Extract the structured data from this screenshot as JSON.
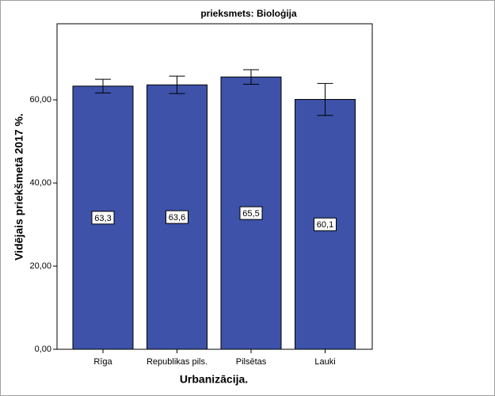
{
  "chart_data": {
    "type": "bar",
    "title": "prieksmets: Bioloģija",
    "x_label": "Urbanizācija.",
    "y_label": "Vidējais priekšmetā 2017 %.",
    "categories": [
      "Rīga",
      "Republikas pils.",
      "Pilsētas",
      "Lauki"
    ],
    "values": [
      63.3,
      63.6,
      65.5,
      60.1
    ],
    "value_labels": [
      "63,3",
      "63,6",
      "65,5",
      "60,1"
    ],
    "errors": [
      1.65,
      2.1,
      1.75,
      3.85
    ],
    "color": "#3d52a8",
    "ylim": [
      0,
      78.3
    ],
    "yticks": [
      {
        "value": 0,
        "label": "0,00"
      },
      {
        "value": 20,
        "label": "20,00"
      },
      {
        "value": 40,
        "label": "40,00"
      },
      {
        "value": 60,
        "label": "60,00"
      }
    ]
  }
}
